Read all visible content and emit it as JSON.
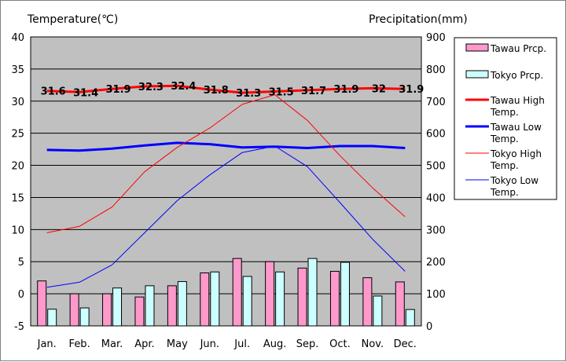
{
  "chart_data": {
    "type": "bar+line",
    "categories": [
      "Jan.",
      "Feb.",
      "Mar.",
      "Apr.",
      "May",
      "Jun.",
      "Jul.",
      "Aug.",
      "Sep.",
      "Oct.",
      "Nov.",
      "Dec."
    ],
    "left_axis": {
      "label": "Temperature(℃)",
      "ylim": [
        -5,
        40
      ],
      "ticks": [
        -5,
        0,
        5,
        10,
        15,
        20,
        25,
        30,
        35,
        40
      ]
    },
    "right_axis": {
      "label": "Precipitation(mm)",
      "ylim": [
        0,
        900
      ],
      "ticks": [
        0,
        100,
        200,
        300,
        400,
        500,
        600,
        700,
        800,
        900
      ]
    },
    "grid": true,
    "legend_position": "right",
    "bar_series": [
      {
        "name": "Tawau Prcp.",
        "color": "#ff99cc",
        "values": [
          140,
          100,
          100,
          90,
          125,
          165,
          210,
          200,
          180,
          170,
          150,
          137
        ]
      },
      {
        "name": "Tokyo Prcp.",
        "color": "#ccffff",
        "values": [
          52,
          56,
          118,
          125,
          138,
          168,
          154,
          168,
          210,
          198,
          93,
          51
        ]
      }
    ],
    "line_series": [
      {
        "name": "Tawau High Temp.",
        "color": "#ff0000",
        "width": 3,
        "values": [
          31.6,
          31.4,
          31.9,
          32.3,
          32.4,
          31.8,
          31.3,
          31.5,
          31.7,
          31.9,
          32.0,
          31.9
        ],
        "labels": [
          "31.6",
          "31.4",
          "31.9",
          "32.3",
          "32.4",
          "31.8",
          "31.3",
          "31.5",
          "31.7",
          "31.9",
          "32",
          "31.9"
        ]
      },
      {
        "name": "Tawau Low Temp.",
        "color": "#0000ff",
        "width": 3,
        "values": [
          22.4,
          22.3,
          22.6,
          23.1,
          23.5,
          23.3,
          22.8,
          22.9,
          22.7,
          23.0,
          23.0,
          22.7
        ]
      },
      {
        "name": "Tokyo High Temp.",
        "color": "#ff0000",
        "width": 1,
        "values": [
          9.5,
          10.5,
          13.5,
          19.0,
          22.8,
          25.8,
          29.5,
          31.0,
          27.0,
          21.5,
          16.5,
          12.0
        ]
      },
      {
        "name": "Tokyo Low Temp.",
        "color": "#0000ff",
        "width": 1,
        "values": [
          1.0,
          1.8,
          4.5,
          9.5,
          14.5,
          18.5,
          22.0,
          23.0,
          19.8,
          14.2,
          8.5,
          3.5
        ]
      }
    ]
  },
  "legend": {
    "items": [
      {
        "label_lines": [
          "Tawau Prcp."
        ],
        "kind": "box",
        "color": "#ff99cc"
      },
      {
        "label_lines": [
          "Tokyo Prcp."
        ],
        "kind": "box",
        "color": "#ccffff"
      },
      {
        "label_lines": [
          "Tawau High",
          "Temp."
        ],
        "kind": "line",
        "color": "#ff0000",
        "width": 3
      },
      {
        "label_lines": [
          "Tawau Low",
          "Temp."
        ],
        "kind": "line",
        "color": "#0000ff",
        "width": 3
      },
      {
        "label_lines": [
          "Tokyo High",
          "Temp."
        ],
        "kind": "line",
        "color": "#ff0000",
        "width": 1
      },
      {
        "label_lines": [
          "Tokyo Low",
          "Temp."
        ],
        "kind": "line",
        "color": "#0000ff",
        "width": 1
      }
    ]
  },
  "colors": {
    "plot_background": "#c0c0c0",
    "grid": "#000000",
    "bar_border": "#000000"
  }
}
